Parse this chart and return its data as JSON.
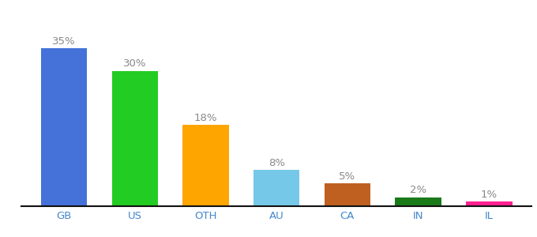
{
  "categories": [
    "GB",
    "US",
    "OTH",
    "AU",
    "CA",
    "IN",
    "IL"
  ],
  "values": [
    35,
    30,
    18,
    8,
    5,
    2,
    1
  ],
  "bar_colors": [
    "#4472d9",
    "#22cc22",
    "#ffa500",
    "#75c8e8",
    "#c06020",
    "#1a7a1a",
    "#ff2090"
  ],
  "labels": [
    "35%",
    "30%",
    "18%",
    "8%",
    "5%",
    "2%",
    "1%"
  ],
  "ylim": [
    0,
    42
  ],
  "background_color": "#ffffff",
  "label_fontsize": 9.5,
  "tick_fontsize": 9.5,
  "label_color": "#888888",
  "tick_color": "#4488cc",
  "bar_width": 0.65
}
